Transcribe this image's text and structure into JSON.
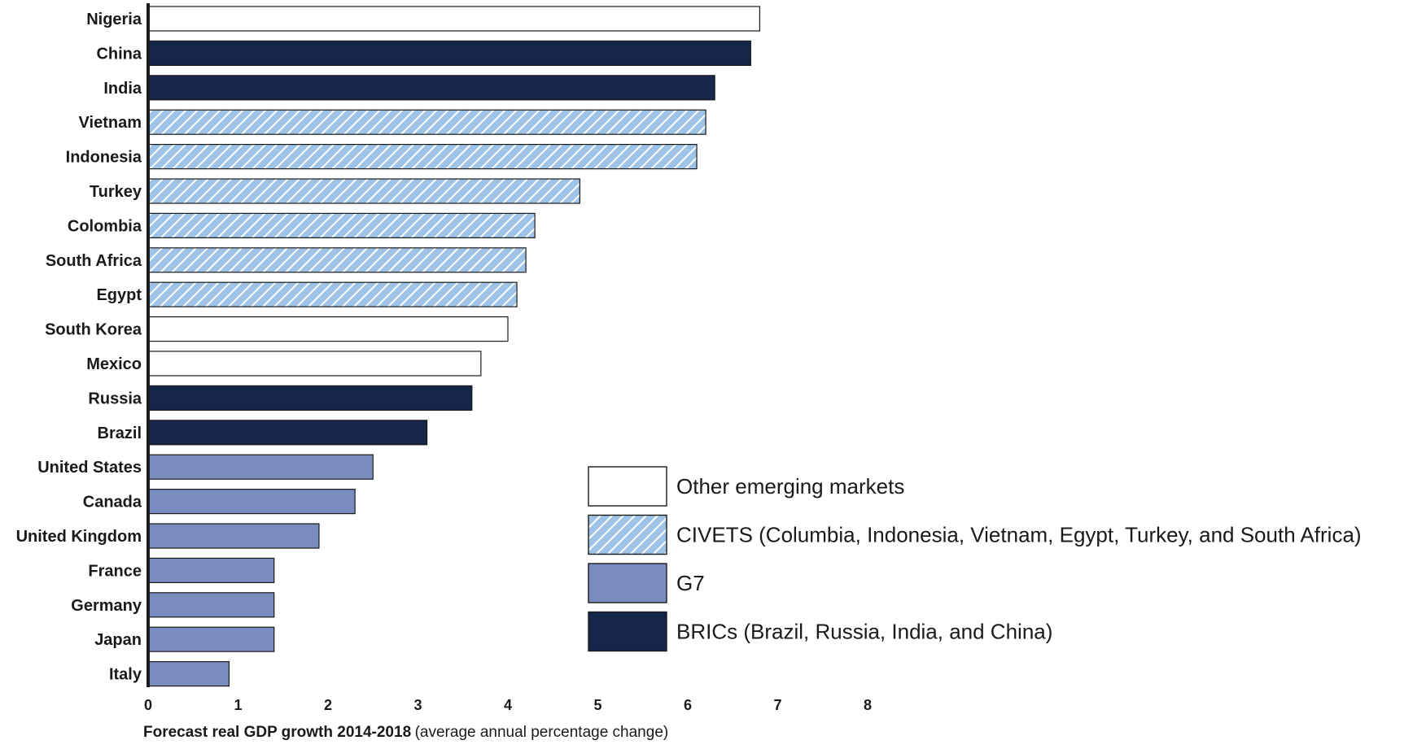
{
  "chart_data": {
    "type": "bar",
    "orientation": "horizontal",
    "categories": [
      "Nigeria",
      "China",
      "India",
      "Vietnam",
      "Indonesia",
      "Turkey",
      "Colombia",
      "South Africa",
      "Egypt",
      "South Korea",
      "Mexico",
      "Russia",
      "Brazil",
      "United States",
      "Canada",
      "United Kingdom",
      "France",
      "Germany",
      "Japan",
      "Italy"
    ],
    "values": [
      6.8,
      6.7,
      6.3,
      6.2,
      6.1,
      4.8,
      4.3,
      4.2,
      4.1,
      4.0,
      3.7,
      3.6,
      3.1,
      2.5,
      2.3,
      1.9,
      1.4,
      1.4,
      1.4,
      0.9
    ],
    "groups": [
      "other",
      "bric",
      "bric",
      "civets",
      "civets",
      "civets",
      "civets",
      "civets",
      "civets",
      "other",
      "other",
      "bric",
      "bric",
      "g7",
      "g7",
      "g7",
      "g7",
      "g7",
      "g7",
      "g7"
    ],
    "xlim": [
      0,
      8
    ],
    "xticks": [
      "0",
      "1",
      "2",
      "3",
      "4",
      "5",
      "6",
      "7",
      "8"
    ],
    "xlabel_bold": "Forecast real GDP growth 2014-2018",
    "xlabel_normal": "(average annual percentage change)",
    "legend_position": "bottom-right",
    "legend": [
      {
        "key": "other",
        "label": "Other emerging markets"
      },
      {
        "key": "civets",
        "label": "CIVETS (Columbia, Indonesia, Vietnam, Egypt, Turkey, and South Africa)"
      },
      {
        "key": "g7",
        "label": "G7"
      },
      {
        "key": "bric",
        "label": "BRICs (Brazil, Russia, India, and China)"
      }
    ],
    "colors": {
      "other": "#ffffff",
      "civets": "#9ec3e6",
      "civets_hatch": "#ffffff",
      "g7": "#7a8bbf",
      "bric": "#16264a",
      "outline": "#1a1a1a"
    }
  }
}
